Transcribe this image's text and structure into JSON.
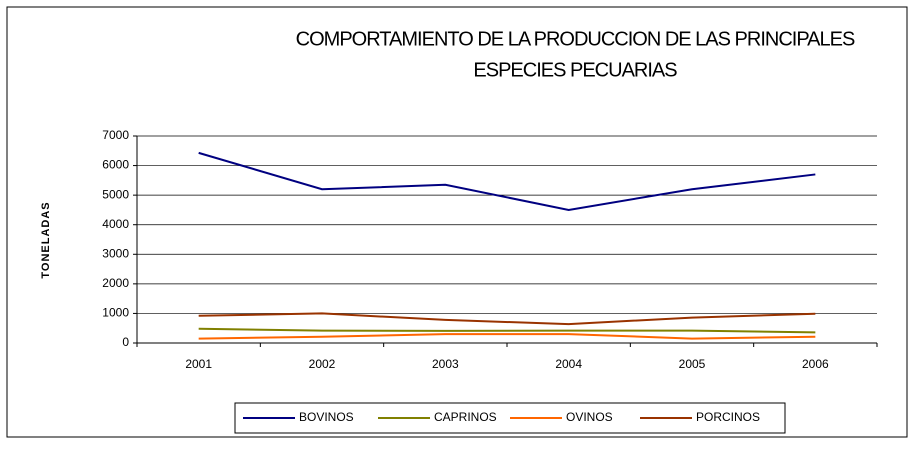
{
  "chart_data": {
    "type": "line",
    "title_lines": [
      "COMPORTAMIENTO DE LA PRODUCCION DE LAS PRINCIPALES",
      "ESPECIES PECUARIAS"
    ],
    "y_label": "TONELADAS",
    "categories": [
      "2001",
      "2002",
      "2003",
      "2004",
      "2005",
      "2006"
    ],
    "series": [
      {
        "name": "BOVINOS",
        "color": "#000080",
        "values": [
          6430,
          5200,
          5350,
          4500,
          5200,
          5700
        ]
      },
      {
        "name": "CAPRINOS",
        "color": "#808000",
        "values": [
          480,
          420,
          410,
          420,
          420,
          360
        ]
      },
      {
        "name": "OVINOS",
        "color": "#ff6600",
        "values": [
          150,
          210,
          300,
          300,
          150,
          210
        ]
      },
      {
        "name": "PORCINOS",
        "color": "#993300",
        "values": [
          920,
          1000,
          780,
          640,
          860,
          990
        ]
      }
    ],
    "ylim": [
      0,
      7000
    ],
    "yticks": [
      0,
      1000,
      2000,
      3000,
      4000,
      5000,
      6000,
      7000
    ],
    "grid": true
  }
}
